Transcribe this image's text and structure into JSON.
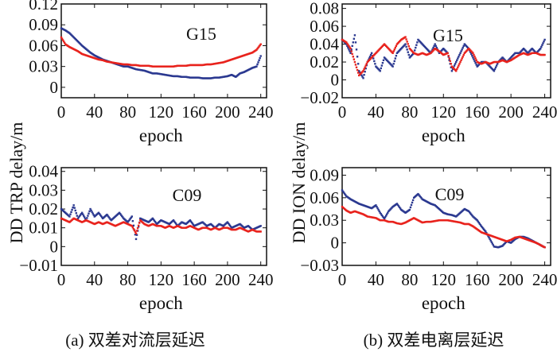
{
  "colors": {
    "blue": "#2b3990",
    "red": "#e8221c"
  },
  "ylabels": {
    "left": "DD TRP delay/m",
    "right": "DD ION delay/m"
  },
  "captions": {
    "a": "(a) 双差对流层延迟",
    "b": "(b) 双差电离层延迟"
  },
  "chart_data": [
    {
      "id": "tl",
      "type": "scatter",
      "title": "G15",
      "xlabel": "epoch",
      "xlim": [
        0,
        247
      ],
      "ylim": [
        -0.015,
        0.12
      ],
      "xticks": [
        0,
        40,
        80,
        120,
        160,
        200,
        240
      ],
      "xtick_labels": [
        "0",
        "40",
        "80",
        "120",
        "160",
        "200",
        "240"
      ],
      "yticks": [
        0,
        0.03,
        0.06,
        0.09,
        0.12
      ],
      "ytick_labels": [
        "0",
        "0.03",
        "0.06",
        "0.09",
        "0.12"
      ],
      "x_step": 5,
      "series": [
        {
          "name": "blue",
          "values": [
            0.085,
            0.082,
            0.078,
            0.072,
            0.066,
            0.06,
            0.055,
            0.05,
            0.046,
            0.043,
            0.04,
            0.038,
            0.036,
            0.034,
            0.032,
            0.03,
            0.03,
            0.028,
            0.026,
            0.025,
            0.024,
            0.022,
            0.02,
            0.02,
            0.019,
            0.018,
            0.017,
            0.016,
            0.016,
            0.015,
            0.015,
            0.014,
            0.014,
            0.014,
            0.013,
            0.013,
            0.013,
            0.014,
            0.014,
            0.015,
            0.016,
            0.018,
            0.015,
            0.02,
            0.022,
            0.025,
            0.028,
            0.03,
            0.045
          ]
        },
        {
          "name": "red",
          "values": [
            0.072,
            0.062,
            0.058,
            0.055,
            0.052,
            0.048,
            0.046,
            0.044,
            0.042,
            0.04,
            0.039,
            0.037,
            0.036,
            0.035,
            0.034,
            0.033,
            0.033,
            0.032,
            0.032,
            0.031,
            0.031,
            0.031,
            0.03,
            0.03,
            0.03,
            0.03,
            0.03,
            0.03,
            0.031,
            0.031,
            0.031,
            0.032,
            0.032,
            0.032,
            0.032,
            0.033,
            0.033,
            0.034,
            0.035,
            0.036,
            0.038,
            0.04,
            0.042,
            0.044,
            0.046,
            0.048,
            0.05,
            0.054,
            0.062
          ]
        }
      ]
    },
    {
      "id": "tr",
      "type": "scatter",
      "title": "G15",
      "xlabel": "epoch",
      "xlim": [
        0,
        247
      ],
      "ylim": [
        -0.02,
        0.085
      ],
      "xticks": [
        0,
        40,
        80,
        120,
        160,
        200,
        240
      ],
      "xtick_labels": [
        "0",
        "40",
        "80",
        "120",
        "160",
        "200",
        "240"
      ],
      "yticks": [
        -0.02,
        0,
        0.02,
        0.04,
        0.06,
        0.08
      ],
      "ytick_labels": [
        "−0.02",
        "0",
        "0.02",
        "0.04",
        "0.06",
        "0.08"
      ],
      "x_step": 5,
      "series": [
        {
          "name": "blue",
          "values": [
            0.045,
            0.04,
            0.03,
            0.05,
            0.01,
            0.002,
            0.02,
            0.03,
            0.015,
            0.01,
            0.025,
            0.02,
            0.015,
            0.03,
            0.035,
            0.04,
            0.025,
            0.03,
            0.045,
            0.04,
            0.035,
            0.03,
            0.04,
            0.03,
            0.035,
            0.03,
            0.01,
            0.02,
            0.03,
            0.04,
            0.035,
            0.025,
            0.015,
            0.02,
            0.02,
            0.015,
            0.01,
            0.02,
            0.025,
            0.02,
            0.025,
            0.03,
            0.03,
            0.035,
            0.03,
            0.035,
            0.03,
            0.035,
            0.045
          ]
        },
        {
          "name": "red",
          "values": [
            0.045,
            0.042,
            0.035,
            0.02,
            0.005,
            0.01,
            0.02,
            0.025,
            0.03,
            0.035,
            0.04,
            0.035,
            0.03,
            0.04,
            0.045,
            0.048,
            0.035,
            0.03,
            0.028,
            0.03,
            0.028,
            0.03,
            0.035,
            0.032,
            0.028,
            0.03,
            0.015,
            0.01,
            0.02,
            0.03,
            0.035,
            0.03,
            0.02,
            0.018,
            0.02,
            0.018,
            0.02,
            0.02,
            0.022,
            0.02,
            0.022,
            0.025,
            0.028,
            0.03,
            0.028,
            0.03,
            0.03,
            0.028,
            0.028
          ]
        }
      ]
    },
    {
      "id": "bl",
      "type": "scatter",
      "title": "C09",
      "xlabel": "epoch",
      "xlim": [
        0,
        247
      ],
      "ylim": [
        -0.01,
        0.042
      ],
      "xticks": [
        0,
        40,
        80,
        120,
        160,
        200,
        240
      ],
      "xtick_labels": [
        "0",
        "40",
        "80",
        "120",
        "160",
        "200",
        "240"
      ],
      "yticks": [
        -0.01,
        0,
        0.01,
        0.02,
        0.03,
        0.04
      ],
      "ytick_labels": [
        "−0.01",
        "0",
        "0.01",
        "0.02",
        "0.03",
        "0.04"
      ],
      "x_step": 5,
      "series": [
        {
          "name": "blue",
          "values": [
            0.02,
            0.018,
            0.016,
            0.022,
            0.015,
            0.018,
            0.014,
            0.02,
            0.016,
            0.018,
            0.015,
            0.017,
            0.014,
            0.016,
            0.018,
            0.015,
            0.013,
            0.016,
            0.004,
            0.015,
            0.014,
            0.013,
            0.015,
            0.012,
            0.014,
            0.013,
            0.012,
            0.014,
            0.011,
            0.013,
            0.012,
            0.014,
            0.011,
            0.012,
            0.013,
            0.011,
            0.012,
            0.01,
            0.012,
            0.011,
            0.013,
            0.01,
            0.011,
            0.012,
            0.01,
            0.011,
            0.009,
            0.01,
            0.011
          ]
        },
        {
          "name": "red",
          "values": [
            0.015,
            0.014,
            0.013,
            0.015,
            0.014,
            0.013,
            0.014,
            0.013,
            0.012,
            0.013,
            0.012,
            0.013,
            0.012,
            0.011,
            0.012,
            0.013,
            0.012,
            0.011,
            0.007,
            0.014,
            0.012,
            0.011,
            0.012,
            0.011,
            0.011,
            0.01,
            0.011,
            0.01,
            0.011,
            0.01,
            0.01,
            0.011,
            0.01,
            0.009,
            0.01,
            0.01,
            0.009,
            0.01,
            0.009,
            0.01,
            0.01,
            0.009,
            0.009,
            0.01,
            0.009,
            0.008,
            0.009,
            0.008,
            0.008
          ]
        }
      ]
    },
    {
      "id": "br",
      "type": "scatter",
      "title": "C09",
      "xlabel": "epoch",
      "xlim": [
        0,
        247
      ],
      "ylim": [
        -0.03,
        0.1
      ],
      "xticks": [
        0,
        40,
        80,
        120,
        160,
        200,
        240
      ],
      "xtick_labels": [
        "0",
        "40",
        "80",
        "120",
        "160",
        "200",
        "240"
      ],
      "yticks": [
        -0.03,
        0,
        0.03,
        0.06,
        0.09
      ],
      "ytick_labels": [
        "−0.03",
        "0",
        "0.03",
        "0.06",
        "0.09"
      ],
      "x_step": 5,
      "series": [
        {
          "name": "blue",
          "values": [
            0.07,
            0.062,
            0.058,
            0.055,
            0.052,
            0.05,
            0.048,
            0.046,
            0.05,
            0.04,
            0.032,
            0.042,
            0.048,
            0.052,
            0.044,
            0.04,
            0.044,
            0.06,
            0.065,
            0.058,
            0.055,
            0.052,
            0.05,
            0.045,
            0.04,
            0.038,
            0.037,
            0.035,
            0.04,
            0.045,
            0.042,
            0.035,
            0.03,
            0.022,
            0.015,
            0.005,
            -0.005,
            -0.006,
            -0.004,
            0.002,
            0.0,
            0.005,
            0.008,
            0.008,
            0.006,
            0.003,
            0.0,
            -0.003,
            -0.006
          ]
        },
        {
          "name": "red",
          "values": [
            0.048,
            0.043,
            0.04,
            0.042,
            0.04,
            0.038,
            0.035,
            0.034,
            0.033,
            0.03,
            0.03,
            0.028,
            0.028,
            0.026,
            0.025,
            0.027,
            0.03,
            0.033,
            0.03,
            0.027,
            0.028,
            0.028,
            0.029,
            0.03,
            0.03,
            0.03,
            0.029,
            0.028,
            0.027,
            0.025,
            0.025,
            0.022,
            0.018,
            0.014,
            0.012,
            0.01,
            0.008,
            0.006,
            0.004,
            0.002,
            0.004,
            0.007,
            0.008,
            0.006,
            0.004,
            0.002,
            0.0,
            -0.003,
            -0.006
          ]
        }
      ]
    }
  ]
}
